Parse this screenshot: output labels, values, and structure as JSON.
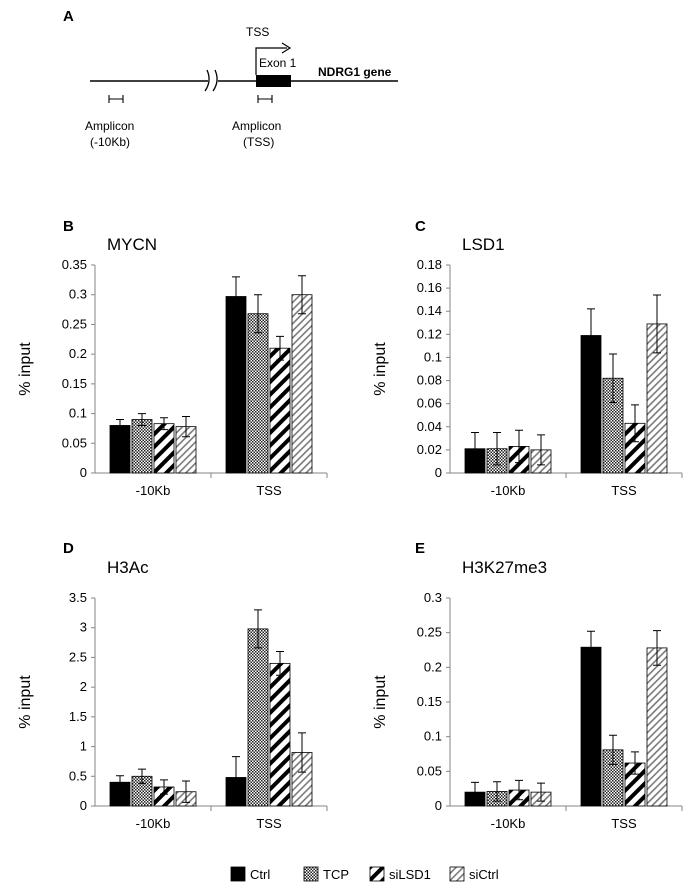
{
  "colors": {
    "ctrl": "#000000",
    "tcp": "#8c8c8c",
    "silsd1": "#ffffff",
    "sictrl": "#c8c8c8",
    "axis": "#868686",
    "line": "#000000"
  },
  "diagram": {
    "panel_letter": "A",
    "tss_label": "TSS",
    "exon_label": "Exon 1",
    "gene_label": "NDRG1 gene",
    "amplicon1_label": "Amplicon",
    "amplicon1_sub": "(-10Kb)",
    "amplicon2_label": "Amplicon",
    "amplicon2_sub": "(TSS)"
  },
  "legend": {
    "items": [
      {
        "key": "ctrl",
        "label": "Ctrl",
        "icon": "solid-black-swatch"
      },
      {
        "key": "tcp",
        "label": "TCP",
        "icon": "checker-swatch"
      },
      {
        "key": "silsd1",
        "label": "siLSD1",
        "icon": "thick-hatch-swatch"
      },
      {
        "key": "sictrl",
        "label": "siCtrl",
        "icon": "thin-hatch-swatch"
      }
    ]
  },
  "chart_data": [
    {
      "panel": "B",
      "type": "bar",
      "title": "MYCN",
      "xlabel": "",
      "ylabel": "% input",
      "ylim": [
        0,
        0.35
      ],
      "yticks": [
        "0",
        "0.05",
        "0.1",
        "0.15",
        "0.2",
        "0.25",
        "0.3",
        "0.35"
      ],
      "categories": [
        "-10Kb",
        "TSS"
      ],
      "series": [
        {
          "name": "Ctrl",
          "values": [
            0.08,
            0.297
          ],
          "errors": [
            0.01,
            0.033
          ]
        },
        {
          "name": "TCP",
          "values": [
            0.09,
            0.268
          ],
          "errors": [
            0.01,
            0.032
          ]
        },
        {
          "name": "siLSD1",
          "values": [
            0.083,
            0.21
          ],
          "errors": [
            0.01,
            0.02
          ]
        },
        {
          "name": "siCtrl",
          "values": [
            0.078,
            0.3
          ],
          "errors": [
            0.017,
            0.032
          ]
        }
      ]
    },
    {
      "panel": "C",
      "type": "bar",
      "title": "LSD1",
      "xlabel": "",
      "ylabel": "% input",
      "ylim": [
        0,
        0.18
      ],
      "yticks": [
        "0",
        "0.02",
        "0.04",
        "0.06",
        "0.08",
        "0.1",
        "0.12",
        "0.14",
        "0.16",
        "0.18"
      ],
      "categories": [
        "-10Kb",
        "TSS"
      ],
      "series": [
        {
          "name": "Ctrl",
          "values": [
            0.021,
            0.119
          ],
          "errors": [
            0.014,
            0.023
          ]
        },
        {
          "name": "TCP",
          "values": [
            0.021,
            0.082
          ],
          "errors": [
            0.014,
            0.021
          ]
        },
        {
          "name": "siLSD1",
          "values": [
            0.023,
            0.043
          ],
          "errors": [
            0.014,
            0.016
          ]
        },
        {
          "name": "siCtrl",
          "values": [
            0.02,
            0.129
          ],
          "errors": [
            0.013,
            0.025
          ]
        }
      ]
    },
    {
      "panel": "D",
      "type": "bar",
      "title": "H3Ac",
      "xlabel": "",
      "ylabel": "% input",
      "ylim": [
        0,
        3.5
      ],
      "yticks": [
        "0",
        "0.5",
        "1",
        "1.5",
        "2",
        "2.5",
        "3",
        "3.5"
      ],
      "categories": [
        "-10Kb",
        "TSS"
      ],
      "series": [
        {
          "name": "Ctrl",
          "values": [
            0.4,
            0.48
          ],
          "errors": [
            0.11,
            0.35
          ]
        },
        {
          "name": "TCP",
          "values": [
            0.5,
            2.98
          ],
          "errors": [
            0.12,
            0.32
          ]
        },
        {
          "name": "siLSD1",
          "values": [
            0.32,
            2.4
          ],
          "errors": [
            0.12,
            0.2
          ]
        },
        {
          "name": "siCtrl",
          "values": [
            0.24,
            0.9
          ],
          "errors": [
            0.18,
            0.33
          ]
        }
      ]
    },
    {
      "panel": "E",
      "type": "bar",
      "title": "H3K27me3",
      "xlabel": "",
      "ylabel": "% input",
      "ylim": [
        0,
        0.3
      ],
      "yticks": [
        "0",
        "0.05",
        "0.1",
        "0.15",
        "0.2",
        "0.25",
        "0.3"
      ],
      "categories": [
        "-10Kb",
        "TSS"
      ],
      "series": [
        {
          "name": "Ctrl",
          "values": [
            0.02,
            0.229
          ],
          "errors": [
            0.014,
            0.023
          ]
        },
        {
          "name": "TCP",
          "values": [
            0.021,
            0.081
          ],
          "errors": [
            0.014,
            0.021
          ]
        },
        {
          "name": "siLSD1",
          "values": [
            0.023,
            0.062
          ],
          "errors": [
            0.014,
            0.016
          ]
        },
        {
          "name": "siCtrl",
          "values": [
            0.02,
            0.228
          ],
          "errors": [
            0.013,
            0.025
          ]
        }
      ]
    }
  ]
}
